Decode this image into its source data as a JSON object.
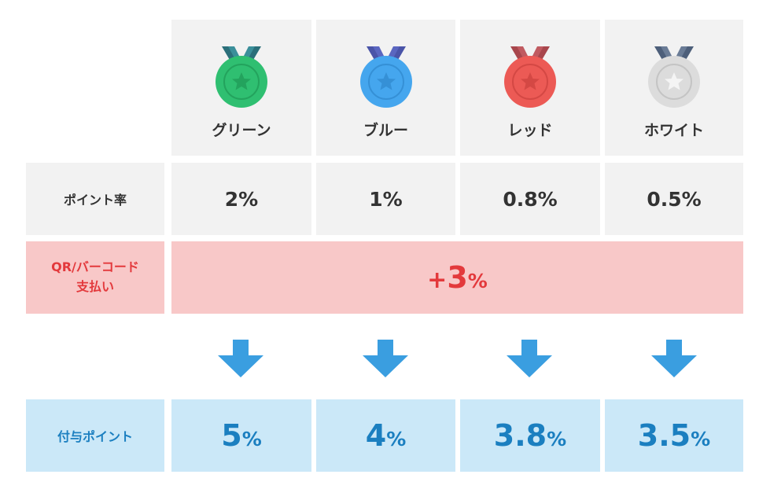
{
  "ranks": [
    {
      "name": "グリーン",
      "rate": "2%",
      "total_num": "5",
      "total_pct": "%",
      "color": "#2fbf71",
      "dark": "#23a35d",
      "ribbon": "#2b6f7a"
    },
    {
      "name": "ブルー",
      "rate": "1%",
      "total_num": "4",
      "total_pct": "%",
      "color": "#45a6ee",
      "dark": "#3590d6",
      "ribbon": "#4a54a8"
    },
    {
      "name": "レッド",
      "rate": "0.8%",
      "total_num": "3.8",
      "total_pct": "%",
      "color": "#ec5a55",
      "dark": "#d44844",
      "ribbon": "#a8464c"
    },
    {
      "name": "ホワイト",
      "rate": "0.5%",
      "total_num": "3.5",
      "total_pct": "%",
      "color": "#dcdcdc",
      "dark": "#c8c8c8",
      "ribbon": "#4d5f7a"
    }
  ],
  "labels": {
    "point_rate": "ポイント率",
    "qr_line1": "QR/バーコード",
    "qr_line2": "支払い",
    "granted": "付与ポイント"
  },
  "bonus": {
    "sign": "+",
    "num": "3",
    "pct": "%"
  },
  "colors": {
    "accent_red": "#e3393c",
    "accent_blue": "#1b7fc0",
    "arrow": "#3a9ee0",
    "pink_bg": "#f8c8c8",
    "blue_bg": "#cbe8f8",
    "gray_bg": "#f2f2f2"
  }
}
